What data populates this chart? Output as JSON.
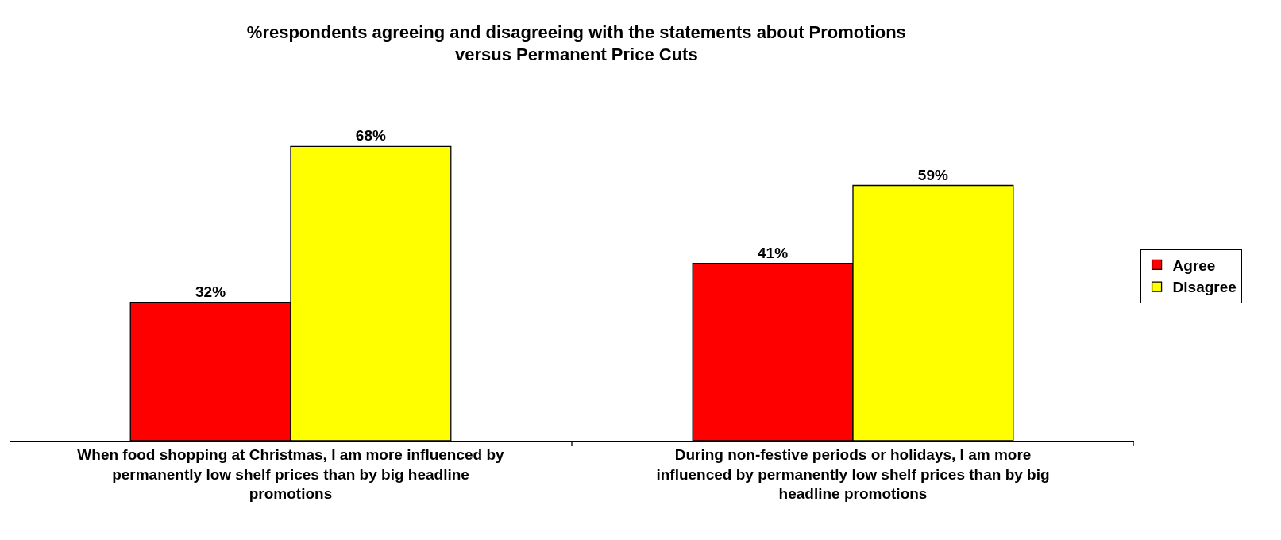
{
  "chart_data": {
    "type": "bar",
    "title": "%respondents agreeing and disagreeing with the statements about Promotions versus Permanent Price Cuts",
    "categories": [
      "When food shopping at Christmas, I am more influenced by permanently low shelf prices than by big headline promotions",
      "During non-festive periods or holidays, I am more influenced by permanently low shelf prices than by big headline promotions"
    ],
    "series": [
      {
        "name": "Agree",
        "color": "#ff0000",
        "values": [
          32,
          41
        ],
        "value_labels": [
          "32%",
          "41%"
        ]
      },
      {
        "name": "Disagree",
        "color": "#ffff00",
        "values": [
          68,
          59
        ],
        "value_labels": [
          "68%",
          "59%"
        ]
      }
    ],
    "legend": "right"
  }
}
